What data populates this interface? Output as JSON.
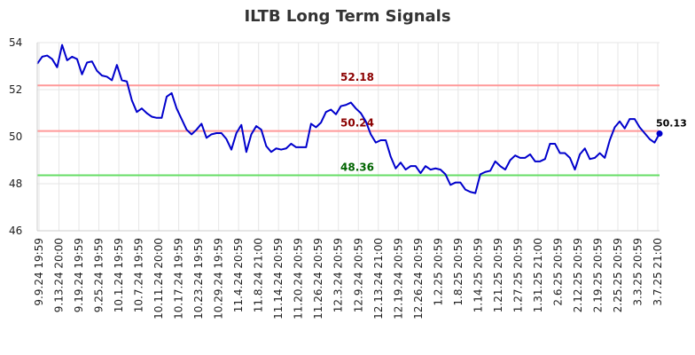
{
  "title": "ILTB Long Term Signals",
  "colors": {
    "line": "#0000cc",
    "grid": "#e6e6e6",
    "resistance": "#ff9999",
    "mid": "#ff9999",
    "support": "#66dd66",
    "resistance_label": "#8b0000",
    "mid_label": "#8b0000",
    "support_label": "#006400"
  },
  "chart_data": {
    "type": "line",
    "title": "ILTB Long Term Signals",
    "xlabel": "",
    "ylabel": "",
    "ylim": [
      46,
      54
    ],
    "yticks": [
      "46",
      "48",
      "50",
      "52",
      "54"
    ],
    "xtick_labels": [
      "9.9.24 19:59",
      "9.13.24 20:00",
      "9.19.24 19:59",
      "9.25.24 19:59",
      "10.1.24 19:59",
      "10.7.24 19:59",
      "10.11.24 20:00",
      "10.17.24 19:59",
      "10.23.24 19:59",
      "10.29.24 19:59",
      "11.4.24 20:59",
      "11.8.24 21:00",
      "11.14.24 20:59",
      "11.20.24 20:59",
      "11.26.24 20:59",
      "12.3.24 20:59",
      "12.9.24 20:59",
      "12.13.24 21:00",
      "12.19.24 20:59",
      "12.26.24 20:59",
      "1.2.25 20:59",
      "1.8.25 20:59",
      "1.14.25 20:59",
      "1.21.25 20:59",
      "1.27.25 20:59",
      "1.31.25 21:00",
      "2.6.25 20:59",
      "2.12.25 20:59",
      "2.19.25 20:59",
      "2.25.25 20:59",
      "3.3.25 20:59",
      "3.7.25 21:00"
    ],
    "grid": true,
    "reference_lines": [
      {
        "label": "52.18",
        "value": 52.18,
        "kind": "resistance"
      },
      {
        "label": "50.24",
        "value": 50.24,
        "kind": "mid"
      },
      {
        "label": "48.36",
        "value": 48.36,
        "kind": "support"
      }
    ],
    "last_value_label": "50.13",
    "series": [
      {
        "values": [
          53.1,
          53.4,
          53.45,
          53.3,
          52.95,
          53.9,
          53.25,
          53.4,
          53.3,
          52.65,
          53.15,
          53.2,
          52.8,
          52.6,
          52.55,
          52.4,
          53.05,
          52.4,
          52.35,
          51.55,
          51.05,
          51.2,
          51.0,
          50.85,
          50.8,
          50.8,
          51.7,
          51.85,
          51.2,
          50.75,
          50.3,
          50.1,
          50.3,
          50.55,
          49.95,
          50.1,
          50.15,
          50.15,
          49.9,
          49.45,
          50.15,
          50.5,
          49.35,
          50.1,
          50.45,
          50.3,
          49.6,
          49.35,
          49.5,
          49.45,
          49.5,
          49.7,
          49.55,
          49.55,
          49.55,
          50.55,
          50.4,
          50.6,
          51.05,
          51.15,
          50.95,
          51.3,
          51.35,
          51.45,
          51.2,
          51.0,
          50.65,
          50.1,
          49.75,
          49.85,
          49.85,
          49.15,
          48.65,
          48.9,
          48.6,
          48.75,
          48.75,
          48.45,
          48.75,
          48.6,
          48.65,
          48.6,
          48.4,
          47.95,
          48.05,
          48.05,
          47.75,
          47.65,
          47.6,
          48.4,
          48.5,
          48.55,
          48.95,
          48.75,
          48.6,
          49.0,
          49.2,
          49.1,
          49.1,
          49.25,
          48.95,
          48.95,
          49.05,
          49.7,
          49.7,
          49.3,
          49.3,
          49.1,
          48.6,
          49.25,
          49.5,
          49.05,
          49.1,
          49.3,
          49.1,
          49.85,
          50.4,
          50.65,
          50.35,
          50.75,
          50.75,
          50.4,
          50.15,
          49.9,
          49.75,
          50.13
        ]
      }
    ]
  }
}
